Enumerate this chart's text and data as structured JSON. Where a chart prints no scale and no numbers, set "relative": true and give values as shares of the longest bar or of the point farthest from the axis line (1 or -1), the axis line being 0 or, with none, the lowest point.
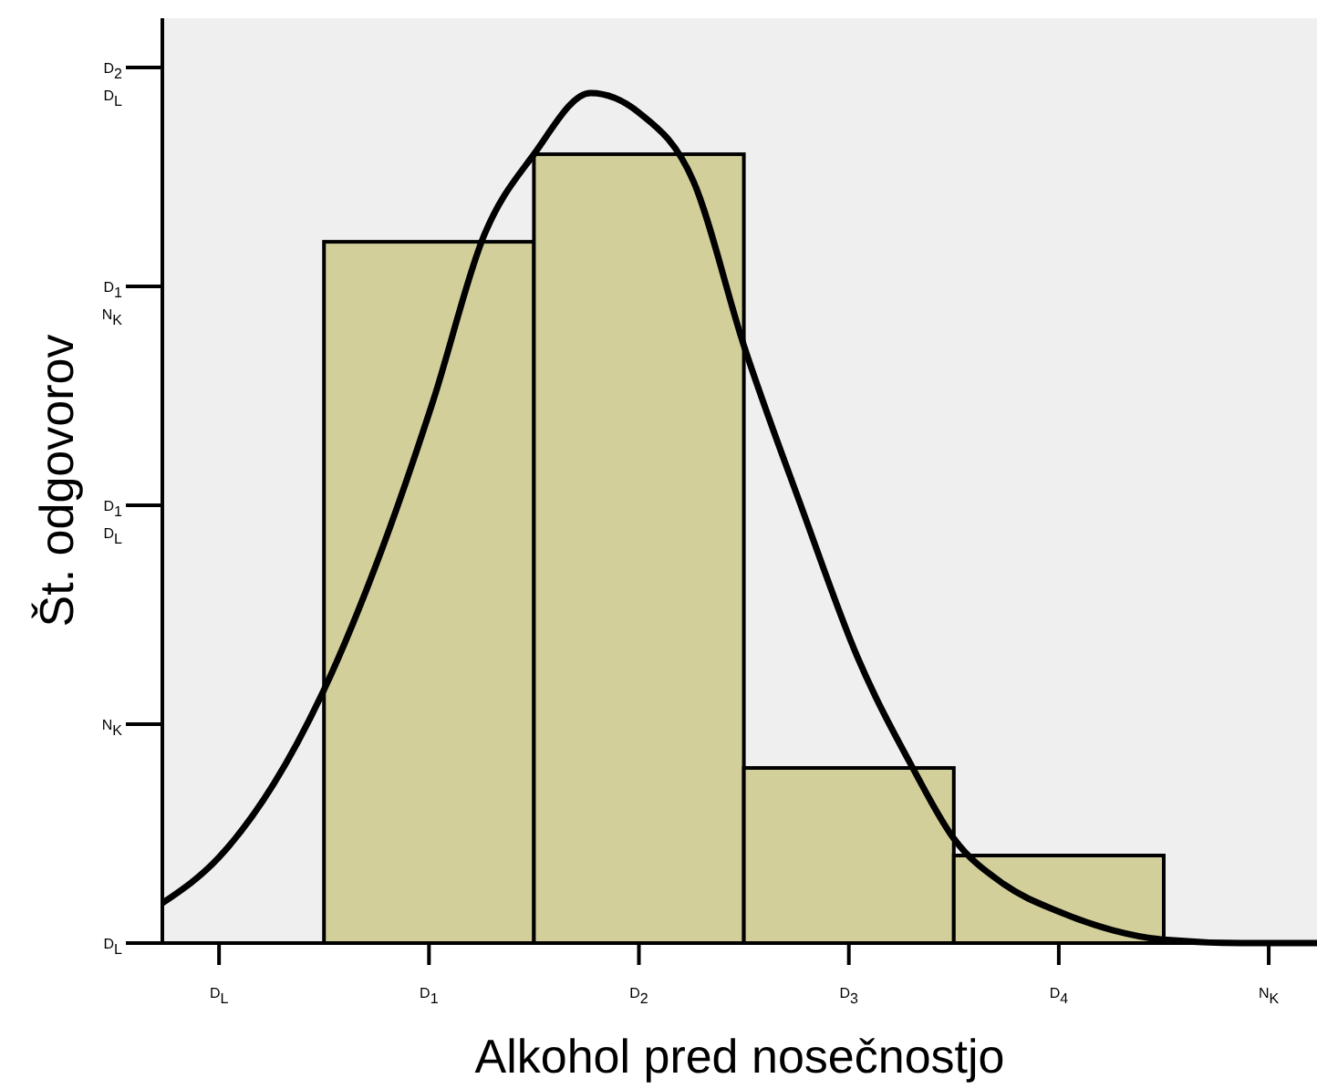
{
  "chart_data": {
    "type": "histogram",
    "xlabel": "Alkohol pred nosečnostjo",
    "ylabel": "Št. odgovorov",
    "relative": true,
    "bins": [
      0.5,
      1.5,
      2.5,
      3.5,
      4.5
    ],
    "values": [
      0.825,
      0.928,
      0.206,
      0.103
    ],
    "color": "#d3cf9b",
    "xlim": [
      -0.27,
      5.23
    ],
    "xticks": [
      {
        "value": 0,
        "label": "D$_{L}$"
      },
      {
        "value": 1,
        "label": "D$_{1}$"
      },
      {
        "value": 2,
        "label": "D$_{2}$"
      },
      {
        "value": 3,
        "label": "D$_{3}$"
      },
      {
        "value": 4,
        "label": "D$_{4}$"
      },
      {
        "value": 5,
        "label": "N$_{K}$"
      }
    ],
    "annotations": [
      "D$_{L}$",
      "N$_{K}$",
      "D$_{1}$\nD$_{L}$",
      "D$_{1}$\nN$_{K}$",
      "D$_{2}$\nD$_{L}$"
    ],
    "series": [
      {
        "type": "line",
        "color": "#000000",
        "x": [
          -0.27,
          0,
          0.26,
          0.5,
          0.78,
          1.02,
          1.26,
          1.5,
          1.77,
          2.0,
          2.26,
          2.5,
          2.78,
          3.04,
          3.3,
          3.5,
          3.74,
          4.0,
          4.26,
          4.5,
          4.87,
          5.23
        ],
        "values": [
          0.047,
          0.101,
          0.187,
          0.298,
          0.466,
          0.638,
          0.831,
          0.928,
          1,
          0.977,
          0.896,
          0.703,
          0.509,
          0.337,
          0.208,
          0.123,
          0.069,
          0.037,
          0.015,
          0.004,
          0,
          0
        ]
      }
    ]
  }
}
